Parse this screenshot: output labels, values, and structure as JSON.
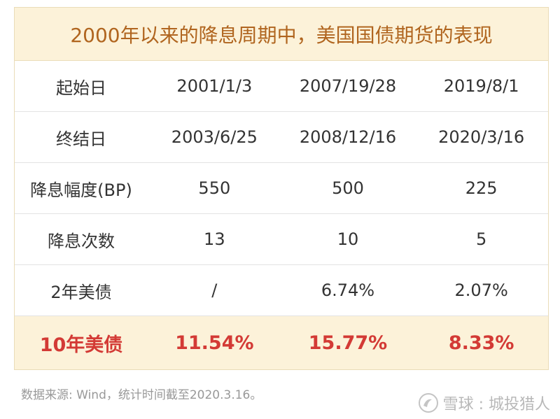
{
  "table": {
    "title": "2000年以来的降息周期中，美国国债期货的表现",
    "rows": [
      {
        "label": "起始日",
        "values": [
          "2001/1/3",
          "2007/19/28",
          "2019/8/1"
        ]
      },
      {
        "label": "终结日",
        "values": [
          "2003/6/25",
          "2008/12/16",
          "2020/3/16"
        ]
      },
      {
        "label": "降息幅度(BP)",
        "values": [
          "550",
          "500",
          "225"
        ]
      },
      {
        "label": "降息次数",
        "values": [
          "13",
          "10",
          "5"
        ]
      },
      {
        "label": "2年美债",
        "values": [
          "/",
          "6.74%",
          "2.07%"
        ]
      },
      {
        "label": "10年美债",
        "values": [
          "11.54%",
          "15.77%",
          "8.33%"
        ]
      }
    ]
  },
  "footer": {
    "source": "数据来源: Wind，统计时间截至2020.3.16。"
  },
  "watermark": {
    "text": "雪球 : 城投猎人"
  },
  "colors": {
    "title_bg": "#fcf2d9",
    "title_text": "#b0651f",
    "highlight_text": "#d33a35"
  }
}
